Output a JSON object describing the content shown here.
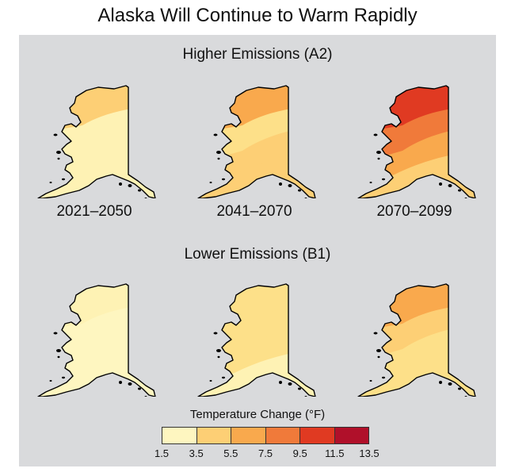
{
  "title": "Alaska Will Continue to Warm Rapidly",
  "scenarios": [
    {
      "name": "Higher Emissions (A2)",
      "maps": [
        {
          "period": "2021–2050",
          "fills": [
            "#fdcf75",
            "#fef2b4",
            "#fef2b4",
            "#fef2b4"
          ]
        },
        {
          "period": "2041–2070",
          "fills": [
            "#f9a94d",
            "#fde089",
            "#fdcf75",
            "#fdcf75"
          ]
        },
        {
          "period": "2070–2099",
          "fills": [
            "#e03a22",
            "#f07a3a",
            "#f9a94d",
            "#fdcf75"
          ]
        }
      ]
    },
    {
      "name": "Lower Emissions (B1)",
      "maps": [
        {
          "period": "",
          "fills": [
            "#fef2b4",
            "#fef6c0",
            "#fef6c0",
            "#fef6c0"
          ]
        },
        {
          "period": "",
          "fills": [
            "#fde089",
            "#fde089",
            "#fde089",
            "#fef2b4"
          ]
        },
        {
          "period": "",
          "fills": [
            "#f9a94d",
            "#fdcf75",
            "#fde089",
            "#fde089"
          ]
        }
      ]
    }
  ],
  "legend": {
    "title": "Temperature Change (°F)",
    "colors": [
      "#fef6c0",
      "#fdcf75",
      "#f9a94d",
      "#f07a3a",
      "#e03a22",
      "#b0102a"
    ],
    "ticks": [
      "1.5",
      "3.5",
      "5.5",
      "7.5",
      "9.5",
      "11.5",
      "13.5"
    ]
  }
}
